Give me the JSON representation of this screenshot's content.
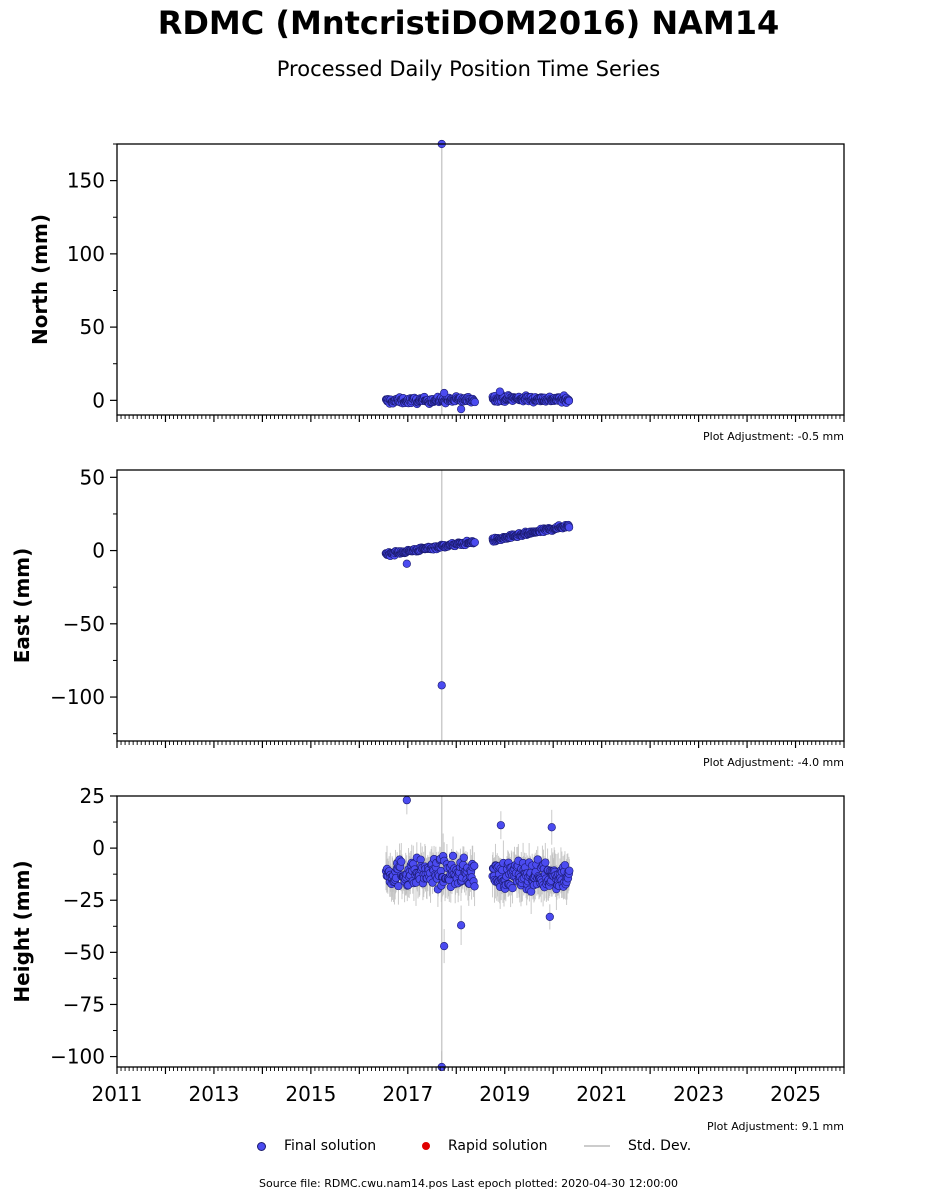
{
  "header": {
    "title": "RDMC (MntcristiDOM2016) NAM14",
    "subtitle": "Processed Daily Position Time Series"
  },
  "legend": {
    "final_label": "Final solution",
    "rapid_label": "Rapid solution",
    "std_label": "Std. Dev."
  },
  "footer": {
    "source": "Source file: RDMC.cwu.nam14.pos  Last epoch plotted: 2020-04-30 12:00:00"
  },
  "colors": {
    "final": "#4b4bf0",
    "final_edge": "#1a1a6e",
    "rapid": "#e00000",
    "std_dev": "#cccccc"
  },
  "chart_data": [
    {
      "type": "scatter",
      "ylabel": "North (mm)",
      "ylim": [
        -10,
        175
      ],
      "yticks": [
        0,
        50,
        100,
        150
      ],
      "xlim": [
        2011,
        2026
      ],
      "xticks": [
        2011,
        2013,
        2015,
        2017,
        2019,
        2021,
        2023,
        2025
      ],
      "adjustment": "Plot Adjustment: -0.5 mm",
      "series": [
        {
          "name": "Final solution",
          "segments": [
            {
              "x_start": 2016.55,
              "x_end": 2018.38,
              "y_start": -0.5,
              "y_end": 0.5,
              "scatter": 2.5
            },
            {
              "x_start": 2018.75,
              "x_end": 2020.33,
              "y_start": 1.5,
              "y_end": 0.5,
              "scatter": 2.5
            }
          ],
          "outliers": [
            {
              "x": 2017.7,
              "y": 175
            },
            {
              "x": 2018.1,
              "y": -6
            },
            {
              "x": 2018.9,
              "y": 6
            },
            {
              "x": 2017.75,
              "y": 5
            }
          ]
        }
      ],
      "std_dev_bars": [
        {
          "x": 2017.7,
          "y_low": -10,
          "y_high": 175
        }
      ]
    },
    {
      "type": "scatter",
      "ylabel": "East (mm)",
      "ylim": [
        -130,
        55
      ],
      "yticks": [
        -100,
        -50,
        0,
        50
      ],
      "xlim": [
        2011,
        2026
      ],
      "xticks": [
        2011,
        2013,
        2015,
        2017,
        2019,
        2021,
        2023,
        2025
      ],
      "adjustment": "Plot Adjustment: -4.0 mm",
      "series": [
        {
          "name": "Final solution",
          "segments": [
            {
              "x_start": 2016.55,
              "x_end": 2018.38,
              "y_start": -2.5,
              "y_end": 6.0,
              "scatter": 1.5
            },
            {
              "x_start": 2018.75,
              "x_end": 2020.33,
              "y_start": 7.0,
              "y_end": 17.0,
              "scatter": 1.5
            }
          ],
          "outliers": [
            {
              "x": 2017.7,
              "y": -92
            },
            {
              "x": 2016.98,
              "y": -9
            }
          ]
        }
      ],
      "std_dev_bars": [
        {
          "x": 2017.7,
          "y_low": -130,
          "y_high": 55
        }
      ]
    },
    {
      "type": "scatter",
      "ylabel": "Height (mm)",
      "ylim": [
        -105,
        25
      ],
      "yticks": [
        -100,
        -75,
        -50,
        -25,
        0,
        25
      ],
      "xlim": [
        2011,
        2026
      ],
      "xticks": [
        2011,
        2013,
        2015,
        2017,
        2019,
        2021,
        2023,
        2025
      ],
      "xtick_labels": [
        "2011",
        "2013",
        "2015",
        "2017",
        "2019",
        "2021",
        "2023",
        "2025"
      ],
      "adjustment": "Plot Adjustment: 9.1 mm",
      "series": [
        {
          "name": "Final solution",
          "segments": [
            {
              "x_start": 2016.55,
              "x_end": 2018.38,
              "y_start": -12,
              "y_end": -12,
              "scatter": 8
            },
            {
              "x_start": 2018.75,
              "x_end": 2020.33,
              "y_start": -13,
              "y_end": -13,
              "scatter": 8
            }
          ],
          "outliers": [
            {
              "x": 2016.98,
              "y": 23
            },
            {
              "x": 2017.75,
              "y": -47
            },
            {
              "x": 2018.1,
              "y": -37
            },
            {
              "x": 2017.7,
              "y": -105
            },
            {
              "x": 2018.92,
              "y": 11
            },
            {
              "x": 2019.97,
              "y": 10
            },
            {
              "x": 2019.93,
              "y": -33
            }
          ]
        }
      ],
      "std_dev_bars": [
        {
          "x": 2017.7,
          "y_low": -105,
          "y_high": 25
        }
      ],
      "std_dev_spread": 8
    }
  ]
}
